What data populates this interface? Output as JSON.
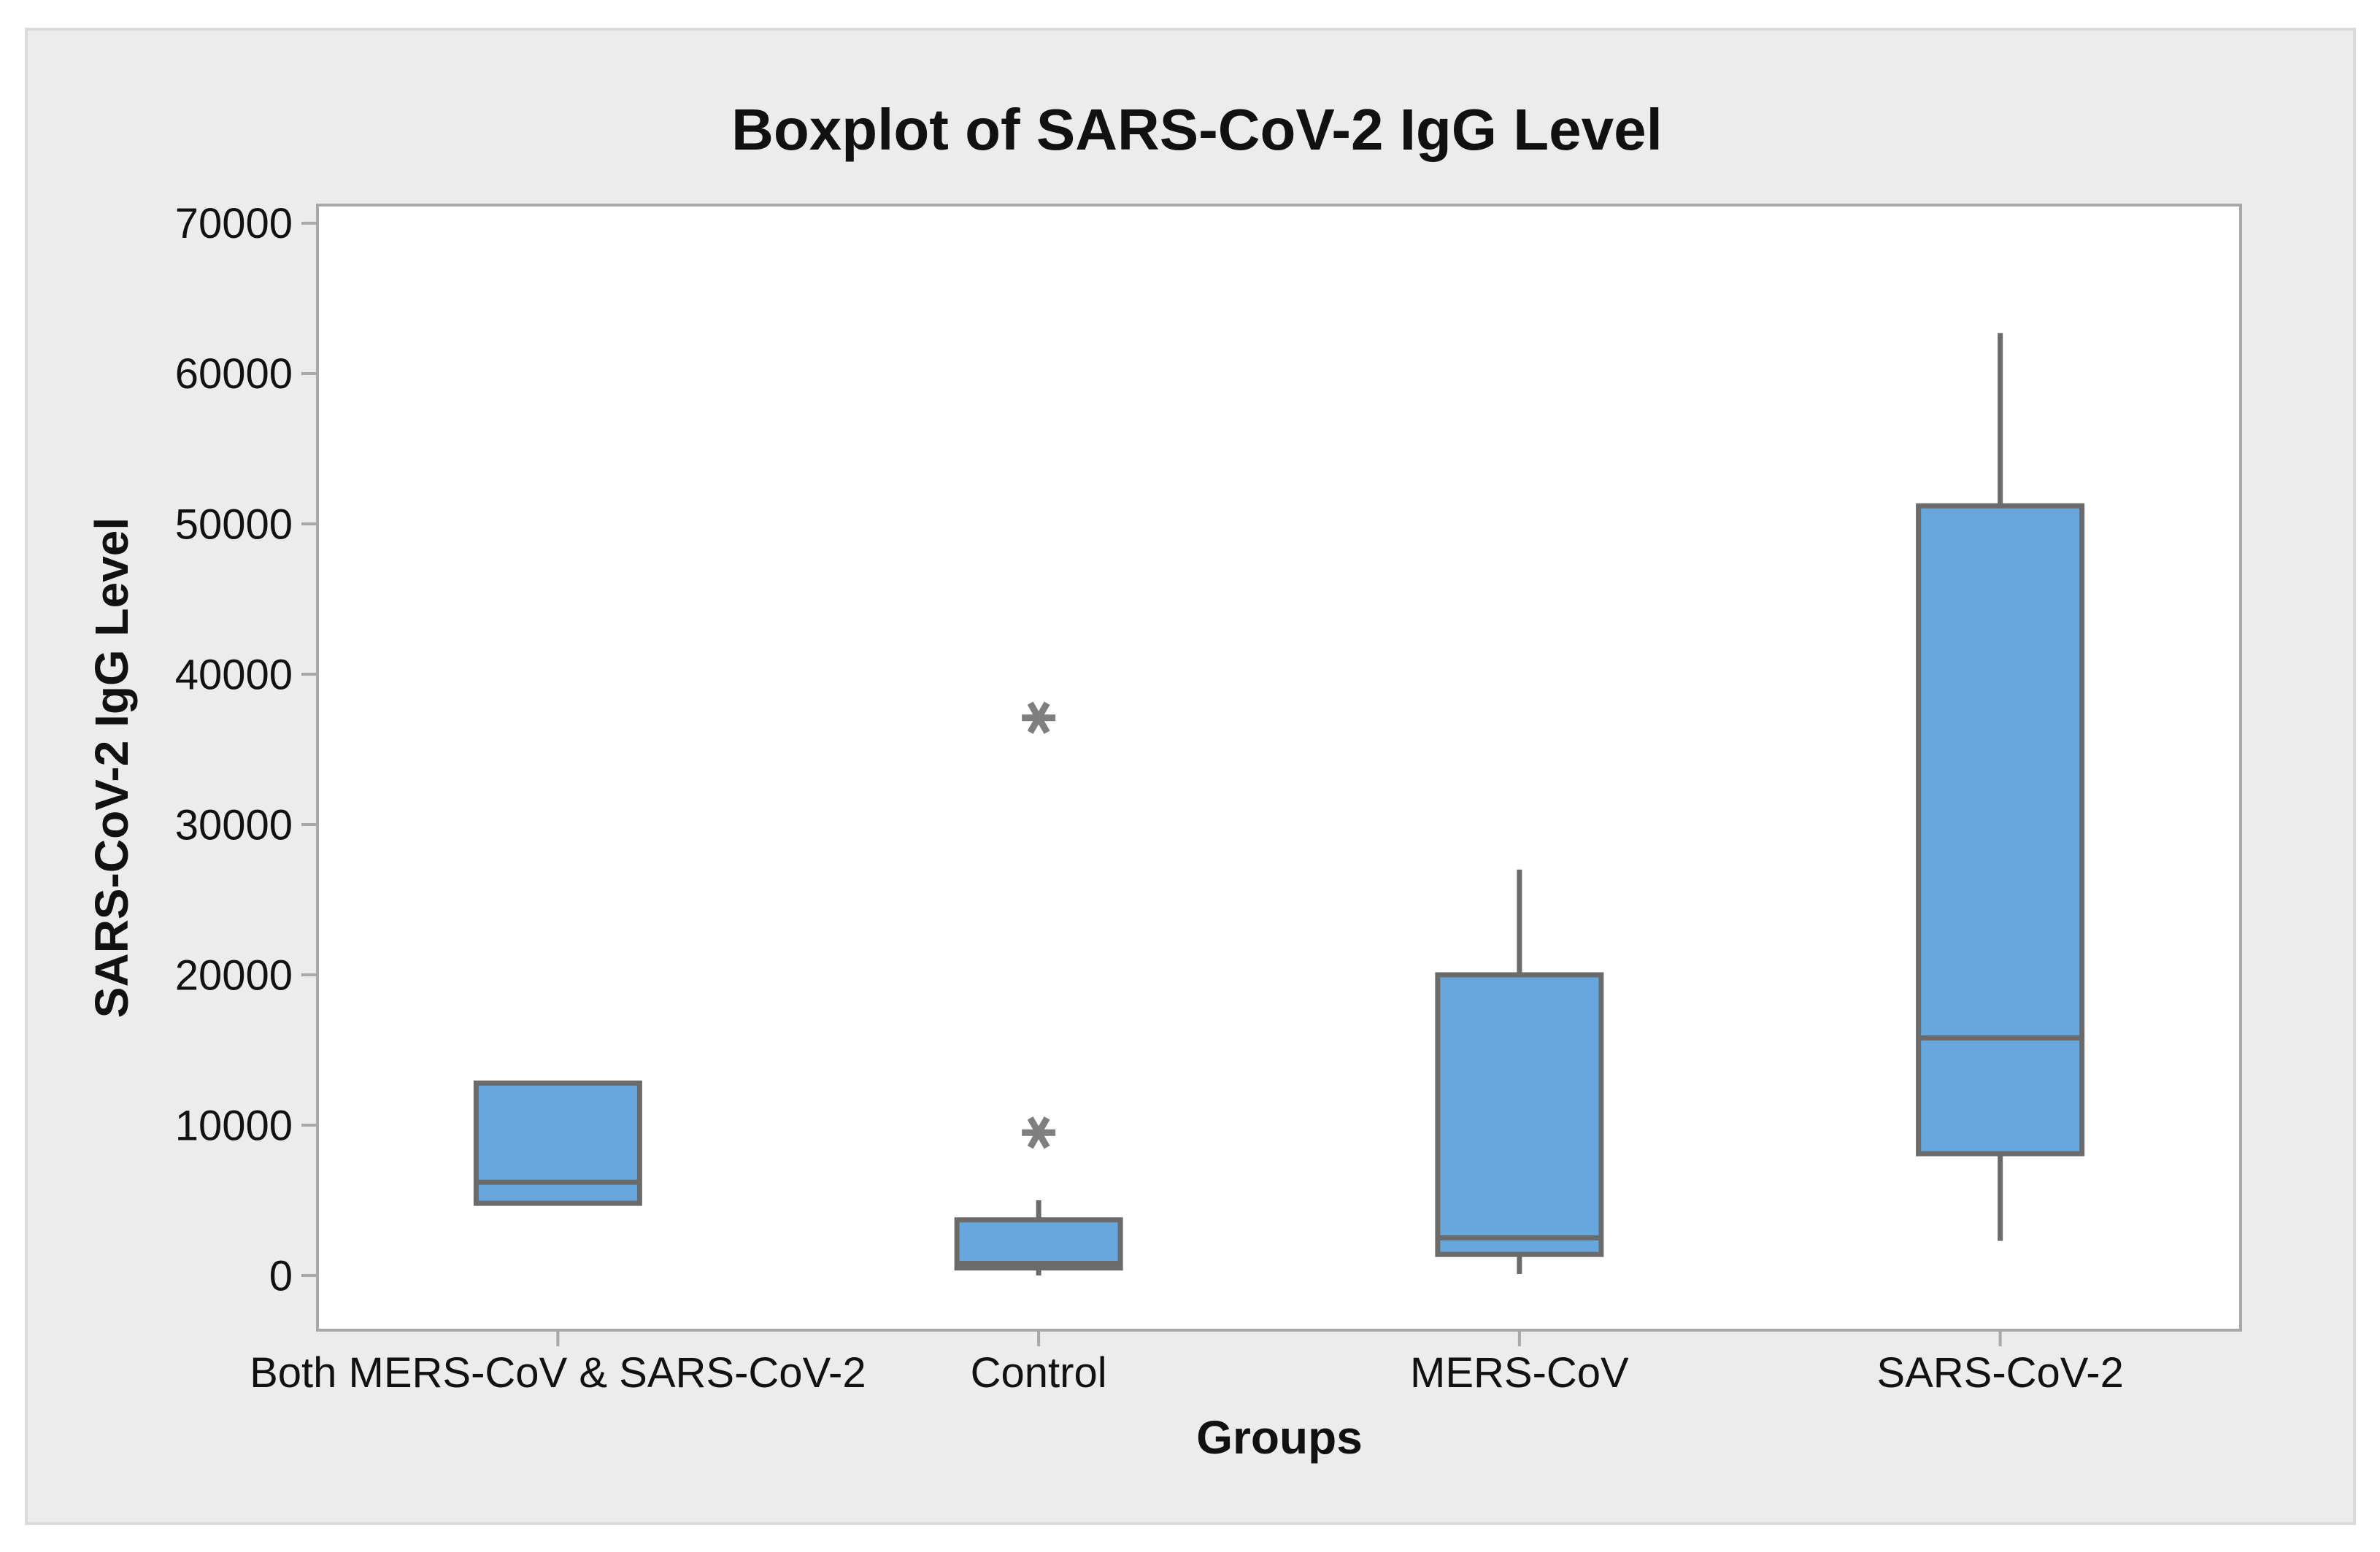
{
  "chart_data": {
    "type": "boxplot",
    "title": "Boxplot of SARS-CoV-2 IgG Level",
    "xlabel": "Groups",
    "ylabel": "SARS-CoV-2 IgG Level",
    "categories": [
      "Both MERS-CoV & SARS-CoV-2",
      "Control",
      "MERS-CoV",
      "SARS-CoV-2"
    ],
    "yticks": [
      0,
      10000,
      20000,
      30000,
      40000,
      50000,
      60000,
      70000
    ],
    "ylim": [
      -3640,
      71210
    ],
    "grid": false,
    "legend": "none",
    "series": [
      {
        "name": "Both MERS-CoV & SARS-CoV-2",
        "whisker_low": 4800,
        "q1": 4800,
        "median": 6200,
        "q3": 12800,
        "whisker_high": 12800,
        "outliers": []
      },
      {
        "name": "Control",
        "whisker_low": 0,
        "q1": 500,
        "median": 800,
        "q3": 3700,
        "whisker_high": 5000,
        "outliers": [
          9500,
          37100
        ]
      },
      {
        "name": "MERS-CoV",
        "whisker_low": 100,
        "q1": 1400,
        "median": 2500,
        "q3": 20000,
        "whisker_high": 27000,
        "outliers": []
      },
      {
        "name": "SARS-CoV-2",
        "whisker_low": 2300,
        "q1": 8100,
        "median": 15800,
        "q3": 51200,
        "whisker_high": 62700,
        "outliers": []
      }
    ],
    "colors": {
      "box_fill": "#68A7DB",
      "box_stroke": "#6B6B6B",
      "median_line": "#6B6B6B",
      "whisker": "#6B6B6B",
      "outlier": "#7F7F7F",
      "frame": "#A8A8A8",
      "figure_background": "#ECECEC",
      "figure_border": "#DBDBDB",
      "plot_background": "#FFFFFF",
      "text": "#111111"
    }
  }
}
